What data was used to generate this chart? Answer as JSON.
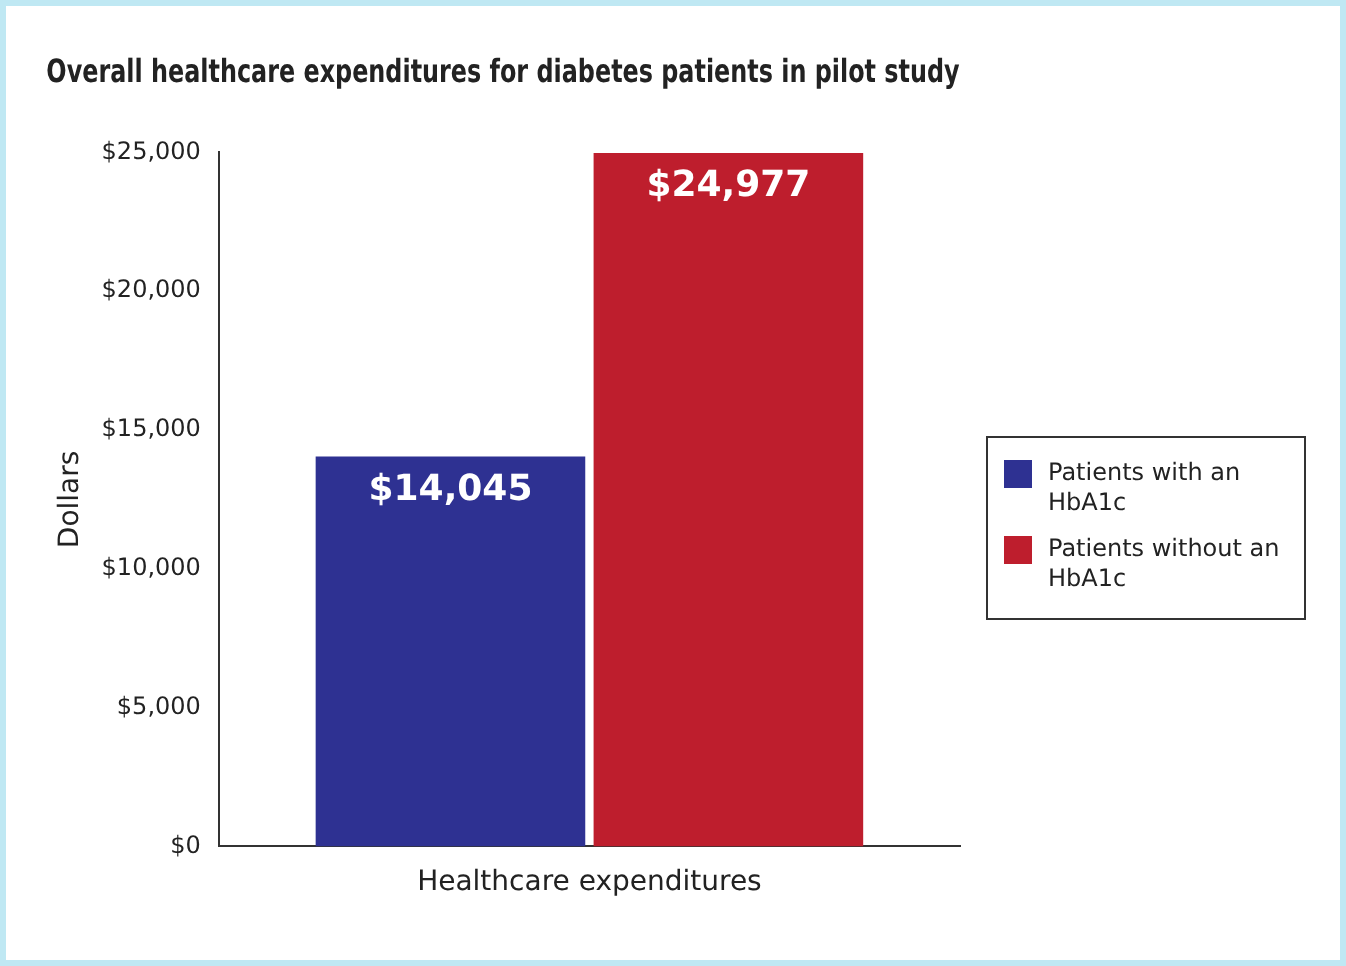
{
  "chart_data": {
    "type": "bar",
    "title": "Overall healthcare expenditures for diabetes patients in pilot study",
    "ylabel": "Dollars",
    "categories": [
      "Healthcare expenditures"
    ],
    "series": [
      {
        "name": "Patients with an HbA1c",
        "color": "#2e3192",
        "values": [
          14045
        ],
        "value_labels": [
          "$14,045"
        ]
      },
      {
        "name": "Patients without an HbA1c",
        "color": "#be1e2d",
        "values": [
          24977
        ],
        "value_labels": [
          "$24,977"
        ]
      }
    ],
    "ylim": [
      0,
      25000
    ],
    "yticks": [
      {
        "value": 0,
        "label": "$0"
      },
      {
        "value": 5000,
        "label": "$5,000"
      },
      {
        "value": 10000,
        "label": "$10,000"
      },
      {
        "value": 15000,
        "label": "$15,000"
      },
      {
        "value": 20000,
        "label": "$20,000"
      },
      {
        "value": 25000,
        "label": "$25,000"
      }
    ],
    "grid": false,
    "legend": "right"
  }
}
